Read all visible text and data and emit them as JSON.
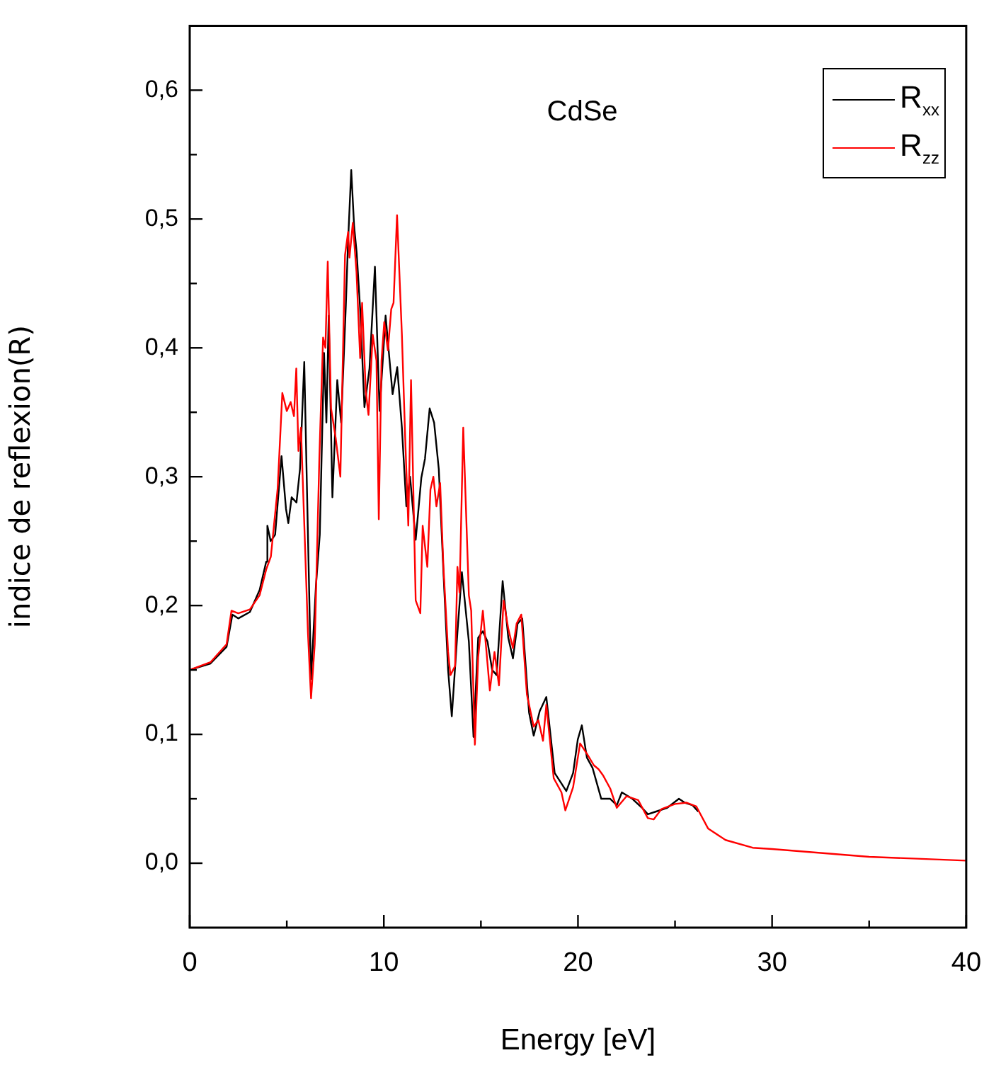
{
  "chart_data": {
    "type": "line",
    "xlabel": "Energy [eV]",
    "ylabel": "indice de reflexion(R)",
    "annotations": [
      "CdSe"
    ],
    "xlim": [
      0,
      40
    ],
    "ylim": [
      -0.05,
      0.65
    ],
    "xticks": [
      0,
      {
        "value": 5,
        "label": null
      },
      10,
      {
        "value": 15,
        "label": null
      },
      20,
      {
        "value": 25,
        "label": null
      },
      30,
      {
        "value": 35,
        "label": null
      },
      40
    ],
    "yticks": [
      {
        "value": 0,
        "label": "0,0"
      },
      {
        "value": 0.05,
        "label": null
      },
      {
        "value": 0.1,
        "label": "0,1"
      },
      {
        "value": 0.15,
        "label": null
      },
      {
        "value": 0.2,
        "label": "0,2"
      },
      {
        "value": 0.25,
        "label": null
      },
      {
        "value": 0.3,
        "label": "0,3"
      },
      {
        "value": 0.35,
        "label": null
      },
      {
        "value": 0.4,
        "label": "0,4"
      },
      {
        "value": 0.45,
        "label": null
      },
      {
        "value": 0.5,
        "label": "0,5"
      },
      {
        "value": 0.55,
        "label": null
      },
      {
        "value": 0.6,
        "label": "0,6"
      }
    ],
    "legend": "top right",
    "marker": "none",
    "line_style": "solid",
    "series": [
      {
        "name": "R$_{xx}$",
        "color": "#000000",
        "x": [
          0,
          1.07,
          1.9,
          2.2,
          2.5,
          3.1,
          3.6,
          3.94,
          4.0,
          4.17,
          4.4,
          4.73,
          4.96,
          5.08,
          5.25,
          5.5,
          5.68,
          5.9,
          6.08,
          6.25,
          6.5,
          6.7,
          6.92,
          7.04,
          7.16,
          7.35,
          7.6,
          7.8,
          8.04,
          8.15,
          8.32,
          8.47,
          8.6,
          8.78,
          9.0,
          9.26,
          9.54,
          9.78,
          10.09,
          10.45,
          10.69,
          10.93,
          11.16,
          11.35,
          11.64,
          11.93,
          12.12,
          12.36,
          12.59,
          12.83,
          13.07,
          13.31,
          13.5,
          13.79,
          14.02,
          14.38,
          14.62,
          14.86,
          15.1,
          15.34,
          15.58,
          15.81,
          16.12,
          16.41,
          16.65,
          16.89,
          17.13,
          17.48,
          17.72,
          18.03,
          18.37,
          18.8,
          19.4,
          19.75,
          19.99,
          20.2,
          20.46,
          20.75,
          21.2,
          21.66,
          22.0,
          22.26,
          22.8,
          23.3,
          23.6,
          24.0,
          24.6,
          25.2,
          25.5,
          25.9,
          26.2
        ],
        "values": [
          0.15,
          0.155,
          0.168,
          0.193,
          0.19,
          0.195,
          0.212,
          0.234,
          0.262,
          0.25,
          0.255,
          0.316,
          0.275,
          0.264,
          0.284,
          0.28,
          0.306,
          0.389,
          0.262,
          0.143,
          0.215,
          0.255,
          0.396,
          0.342,
          0.425,
          0.284,
          0.375,
          0.342,
          0.432,
          0.48,
          0.538,
          0.494,
          0.474,
          0.43,
          0.354,
          0.384,
          0.463,
          0.351,
          0.425,
          0.364,
          0.385,
          0.338,
          0.277,
          0.3,
          0.251,
          0.299,
          0.314,
          0.353,
          0.342,
          0.306,
          0.226,
          0.15,
          0.114,
          0.179,
          0.226,
          0.172,
          0.098,
          0.175,
          0.18,
          0.172,
          0.15,
          0.146,
          0.219,
          0.175,
          0.159,
          0.186,
          0.19,
          0.117,
          0.099,
          0.118,
          0.129,
          0.07,
          0.056,
          0.07,
          0.096,
          0.107,
          0.082,
          0.074,
          0.05,
          0.05,
          0.045,
          0.055,
          0.05,
          0.043,
          0.038,
          0.04,
          0.043,
          0.05,
          0.047,
          0.045,
          0.04
        ]
      },
      {
        "name": "R$_{zz}$",
        "color": "#ff0000",
        "x": [
          0,
          1.07,
          1.9,
          2.15,
          2.5,
          3.1,
          3.6,
          3.94,
          4.18,
          4.53,
          4.77,
          5.0,
          5.2,
          5.37,
          5.49,
          5.6,
          5.73,
          5.92,
          6.09,
          6.25,
          6.44,
          6.68,
          6.87,
          6.99,
          7.11,
          7.28,
          7.52,
          7.76,
          8.0,
          8.16,
          8.23,
          8.4,
          8.59,
          8.78,
          8.88,
          9.07,
          9.21,
          9.43,
          9.62,
          9.74,
          9.88,
          10.02,
          10.21,
          10.38,
          10.5,
          10.68,
          10.93,
          11.1,
          11.26,
          11.4,
          11.64,
          11.88,
          12.0,
          12.24,
          12.4,
          12.55,
          12.71,
          12.9,
          13.07,
          13.31,
          13.43,
          13.67,
          13.79,
          13.9,
          14.09,
          14.38,
          14.5,
          14.69,
          14.86,
          15.1,
          15.27,
          15.46,
          15.7,
          15.93,
          16.17,
          16.41,
          16.65,
          16.84,
          17.08,
          17.37,
          17.72,
          17.96,
          18.2,
          18.37,
          18.75,
          19.15,
          19.35,
          19.75,
          20.11,
          20.46,
          20.82,
          21.06,
          21.3,
          21.66,
          22.0,
          22.5,
          23.1,
          23.6,
          23.9,
          24.3,
          25.0,
          25.6,
          26.1,
          26.7,
          27.6,
          29,
          30,
          35,
          40
        ],
        "values": [
          0.15,
          0.156,
          0.17,
          0.196,
          0.194,
          0.197,
          0.208,
          0.228,
          0.238,
          0.291,
          0.365,
          0.351,
          0.358,
          0.347,
          0.384,
          0.32,
          0.338,
          0.255,
          0.179,
          0.128,
          0.17,
          0.316,
          0.408,
          0.4,
          0.467,
          0.353,
          0.33,
          0.3,
          0.472,
          0.49,
          0.47,
          0.497,
          0.459,
          0.392,
          0.435,
          0.366,
          0.348,
          0.41,
          0.39,
          0.267,
          0.39,
          0.42,
          0.398,
          0.43,
          0.435,
          0.503,
          0.41,
          0.33,
          0.262,
          0.375,
          0.204,
          0.194,
          0.262,
          0.23,
          0.29,
          0.3,
          0.277,
          0.295,
          0.23,
          0.164,
          0.146,
          0.153,
          0.23,
          0.21,
          0.338,
          0.208,
          0.196,
          0.092,
          0.16,
          0.196,
          0.167,
          0.134,
          0.164,
          0.138,
          0.204,
          0.182,
          0.167,
          0.186,
          0.193,
          0.131,
          0.106,
          0.111,
          0.095,
          0.123,
          0.066,
          0.055,
          0.041,
          0.059,
          0.093,
          0.085,
          0.076,
          0.073,
          0.068,
          0.058,
          0.043,
          0.052,
          0.049,
          0.035,
          0.034,
          0.042,
          0.046,
          0.047,
          0.044,
          0.027,
          0.018,
          0.012,
          0.011,
          0.005,
          0.002
        ]
      }
    ]
  }
}
